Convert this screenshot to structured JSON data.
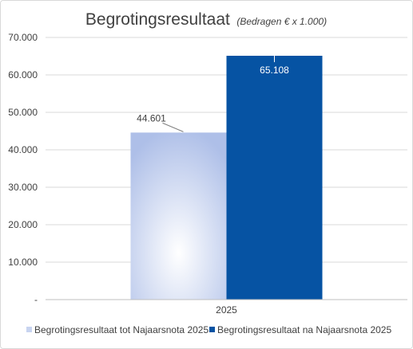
{
  "chart_data": {
    "type": "bar",
    "title": "Begrotingsresultaat",
    "subtitle": "(Bedragen  € x 1.000)",
    "categories": [
      "2025"
    ],
    "series": [
      {
        "name": "Begrotingsresultaat tot Najaarsnota 2025",
        "values": [
          44601
        ],
        "label": "44.601",
        "color": "#b4c4ea"
      },
      {
        "name": "Begrotingsresultaat na Najaarsnota 2025",
        "values": [
          65108
        ],
        "label": "65.108",
        "color": "#0653a3"
      }
    ],
    "ylim": [
      0,
      70000
    ],
    "yticks": [
      0,
      10000,
      20000,
      30000,
      40000,
      50000,
      60000,
      70000
    ],
    "ytick_labels": [
      "-",
      "10.000",
      "20.000",
      "30.000",
      "40.000",
      "50.000",
      "60.000",
      "70.000"
    ],
    "grid": true,
    "legend": "bottom"
  }
}
